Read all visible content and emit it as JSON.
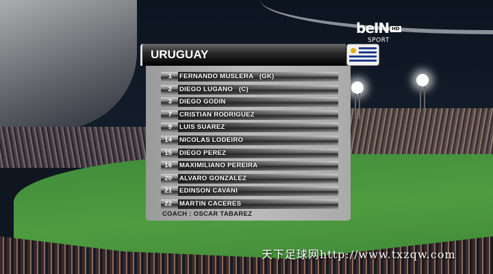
{
  "broadcaster": {
    "logo_text": "beIN",
    "logo_badge": "HD",
    "logo_sub": "SPORT"
  },
  "team": {
    "name": "URUGUAY",
    "flag": "uruguay-flag",
    "accent": "#1d3c8a"
  },
  "players": [
    {
      "number": "1",
      "name": "FERNANDO MUSLERA   (GK)"
    },
    {
      "number": "2",
      "name": "DIEGO LUGANO   (C)"
    },
    {
      "number": "3",
      "name": "DIEGO GODIN"
    },
    {
      "number": "7",
      "name": "CRISTIAN RODRIGUEZ"
    },
    {
      "number": "9",
      "name": "LUIS SUAREZ"
    },
    {
      "number": "14",
      "name": "NICOLAS LODEIRO"
    },
    {
      "number": "15",
      "name": "DIEGO PEREZ"
    },
    {
      "number": "16",
      "name": "MAXIMILIANO PEREIRA"
    },
    {
      "number": "20",
      "name": "ALVARO GONZALEZ"
    },
    {
      "number": "21",
      "name": "EDINSON CAVANI"
    },
    {
      "number": "22",
      "name": "MARTIN CACERES"
    }
  ],
  "coach": "COACH : OSCAR TABAREZ",
  "watermark": "天下足球网http://www.txzqw.com"
}
